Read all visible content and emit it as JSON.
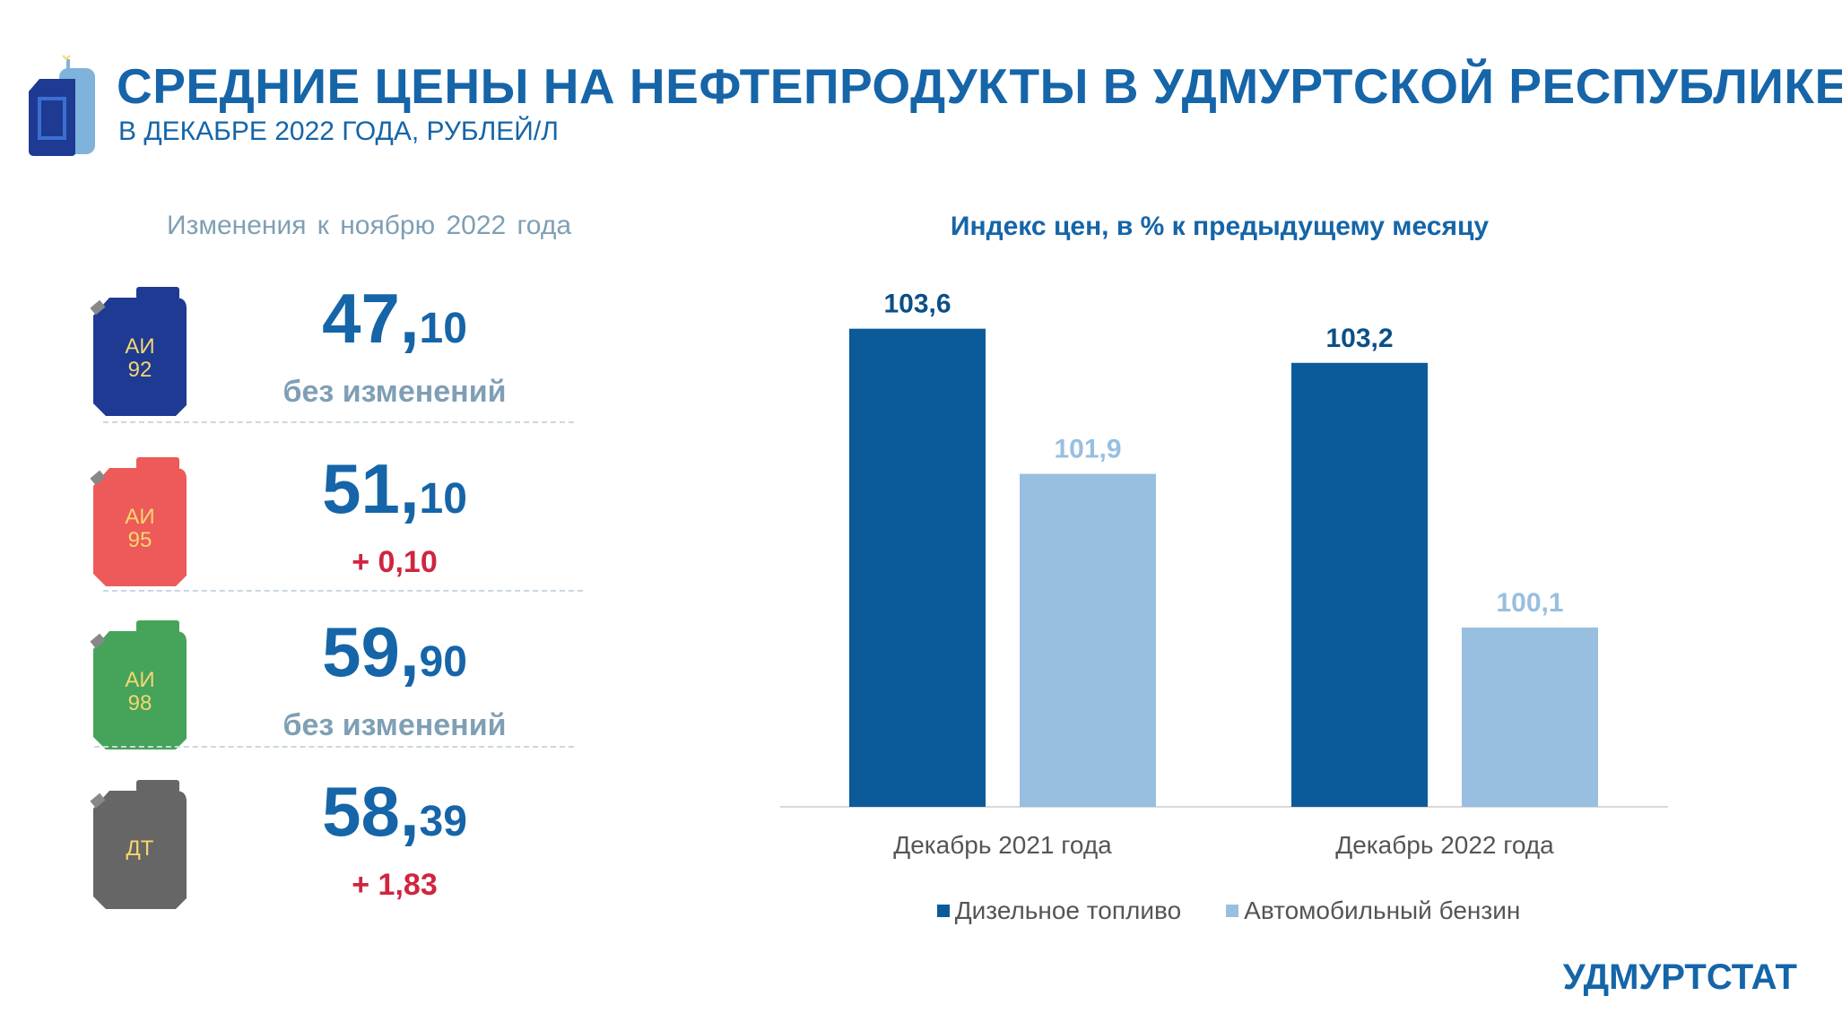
{
  "header": {
    "title": "СРЕДНИЕ ЦЕНЫ НА НЕФТЕПРОДУКТЫ В УДМУРТСКОЙ РЕСПУБЛИКЕ",
    "subtitle": "В ДЕКАБРЕ 2022 ГОДА, РУБЛЕЙ/Л",
    "icon": "fuel-canister-icon"
  },
  "left_panel": {
    "heading": "Изменения к ноябрю 2022 года",
    "fuels": [
      {
        "label_line1": "АИ",
        "label_line2": "92",
        "price_int": "47,",
        "price_dec": "10",
        "change": "без изменений",
        "change_type": "neutral",
        "can_color": "#1f3a93",
        "label_color": "#f5d76e",
        "icon": "canister-icon"
      },
      {
        "label_line1": "АИ",
        "label_line2": "95",
        "price_int": "51,",
        "price_dec": "10",
        "change": "+ 0,10",
        "change_type": "up",
        "can_color": "#ee5a5a",
        "label_color": "#f5d76e",
        "icon": "canister-icon"
      },
      {
        "label_line1": "АИ",
        "label_line2": "98",
        "price_int": "59,",
        "price_dec": "90",
        "change": "без изменений",
        "change_type": "neutral",
        "can_color": "#46a35a",
        "label_color": "#f5d76e",
        "icon": "canister-icon"
      },
      {
        "label_line1": "ДТ",
        "label_line2": "",
        "price_int": "58,",
        "price_dec": "39",
        "change": "+ 1,83",
        "change_type": "up",
        "can_color": "#666666",
        "label_color": "#f5d76e",
        "icon": "canister-icon"
      }
    ]
  },
  "chart_data": {
    "type": "bar",
    "title": "Индекс цен, в % к предыдущему месяцу",
    "categories": [
      "Декабрь 2021 года",
      "Декабрь 2022 года"
    ],
    "series": [
      {
        "name": "Дизельное топливо",
        "values": [
          103.6,
          103.2
        ],
        "labels": [
          "103,6",
          "103,2"
        ],
        "color": "#0b5b9a",
        "label_color": "#0b4f86"
      },
      {
        "name": "Автомобильный бензин",
        "values": [
          101.9,
          100.1
        ],
        "labels": [
          "101,9",
          "100,1"
        ],
        "color": "#98bfdf",
        "label_color": "#98bfdf"
      }
    ],
    "ylim": [
      98.0,
      104.3
    ],
    "grid": false,
    "legend_position": "bottom"
  },
  "footer": {
    "brand": "УДМУРТСТАТ"
  }
}
